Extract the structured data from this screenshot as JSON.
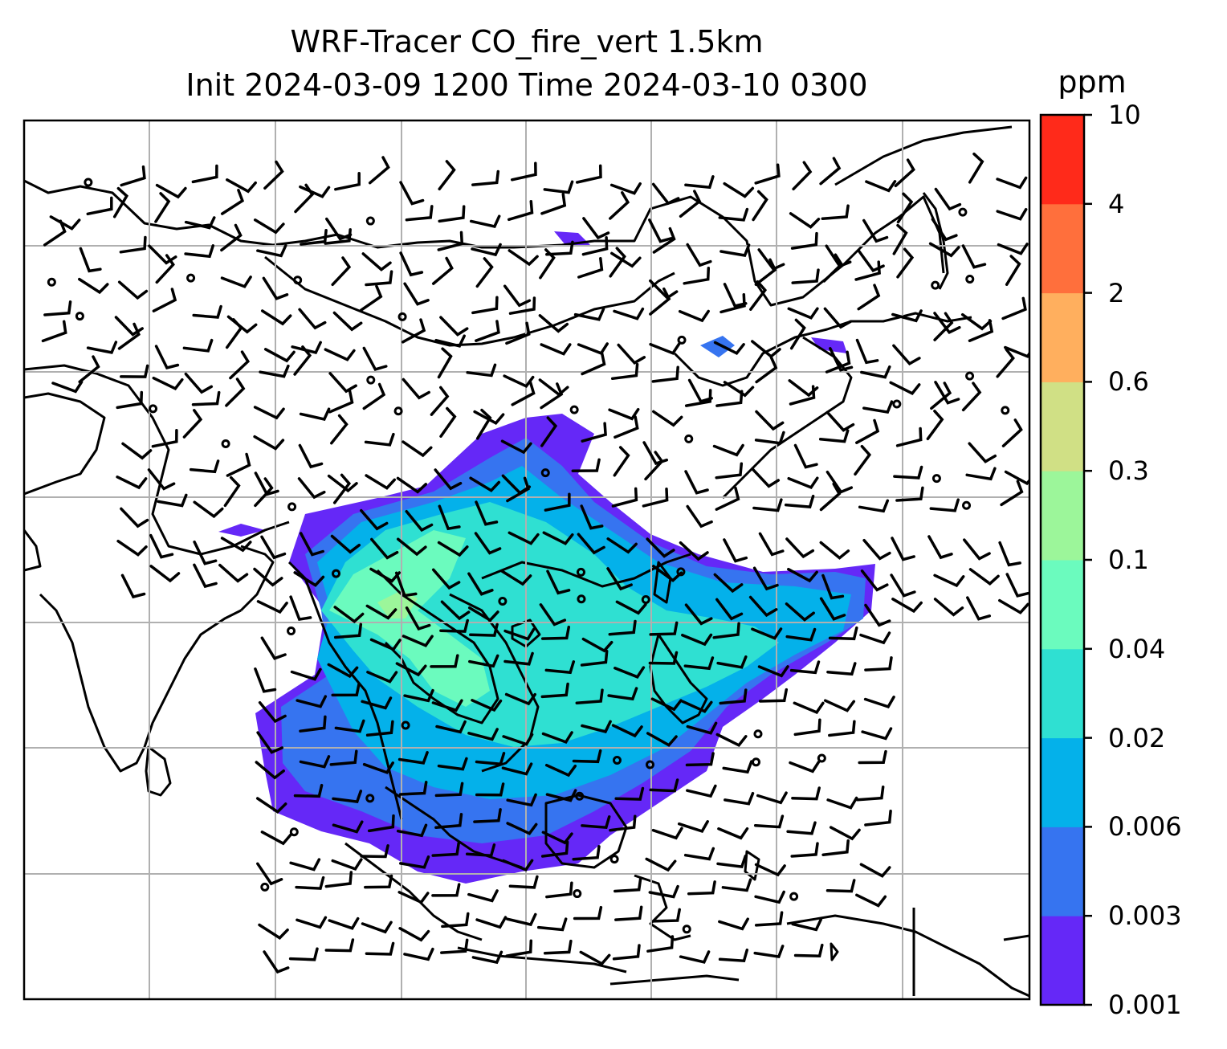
{
  "title": {
    "line1": "WRF-Tracer CO_fire_vert 1.5km",
    "line2": "Init 2024-03-09 1200 Time 2024-03-10 0300"
  },
  "colorbar": {
    "unit": "ppm",
    "levels": [
      "0.001",
      "0.003",
      "0.006",
      "0.02",
      "0.04",
      "0.1",
      "0.3",
      "0.6",
      "2",
      "4",
      "10"
    ],
    "colors": [
      "#6528f7",
      "#3674f0",
      "#04b1ea",
      "#2fe0d2",
      "#6bfbbe",
      "#9cf69a",
      "#d0e085",
      "#ffaf5e",
      "#ff6f3c",
      "#ff2a1a"
    ]
  },
  "map": {
    "has_coastlines": true,
    "gridlines": true,
    "wind_barbs": true,
    "field": "CO_fire_vert"
  }
}
